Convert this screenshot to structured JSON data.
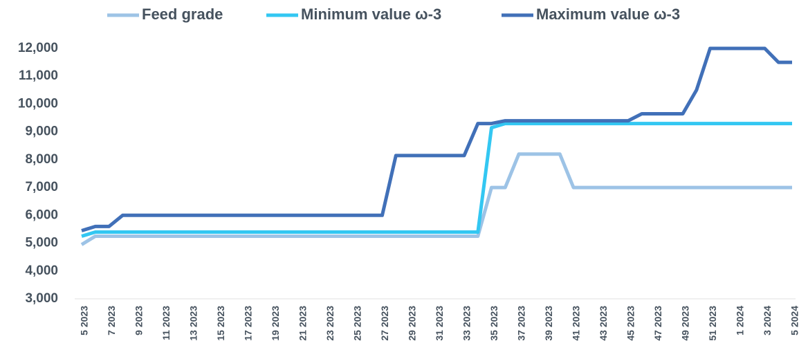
{
  "chart_data": {
    "type": "line",
    "categories": [
      "5 2023",
      null,
      "7 2023",
      null,
      "9 2023",
      null,
      "11 2023",
      null,
      "13 2023",
      null,
      "15 2023",
      null,
      "17 2023",
      null,
      "19 2023",
      null,
      "21 2023",
      null,
      "23 2023",
      null,
      "25 2023",
      null,
      "27 2023",
      null,
      "29 2023",
      null,
      "31 2023",
      null,
      "33 2023",
      null,
      "35 2023",
      null,
      "37 2023",
      null,
      "39 2023",
      null,
      "41 2023",
      null,
      "43 2023",
      null,
      "45 2023",
      null,
      "47 2023",
      null,
      "49 2023",
      null,
      "51 2023",
      null,
      "1 2024",
      null,
      "3 2024",
      null,
      "5 2024"
    ],
    "series": [
      {
        "name": "Feed grade",
        "color": "#9dc3e6",
        "values": [
          4950,
          5250,
          5250,
          5250,
          5250,
          5250,
          5250,
          5250,
          5250,
          5250,
          5250,
          5250,
          5250,
          5250,
          5250,
          5250,
          5250,
          5250,
          5250,
          5250,
          5250,
          5250,
          5250,
          5250,
          5250,
          5250,
          5250,
          5250,
          5250,
          5250,
          7000,
          7000,
          8200,
          8200,
          8200,
          8200,
          7000,
          7000,
          7000,
          7000,
          7000,
          7000,
          7000,
          7000,
          7000,
          7000,
          7000,
          7000,
          7000,
          7000,
          7000,
          7000,
          7000
        ]
      },
      {
        "name": "Minimum value ω-3",
        "color": "#33c7f2",
        "values": [
          5250,
          5400,
          5400,
          5400,
          5400,
          5400,
          5400,
          5400,
          5400,
          5400,
          5400,
          5400,
          5400,
          5400,
          5400,
          5400,
          5400,
          5400,
          5400,
          5400,
          5400,
          5400,
          5400,
          5400,
          5400,
          5400,
          5400,
          5400,
          5400,
          5400,
          9150,
          9300,
          9300,
          9300,
          9300,
          9300,
          9300,
          9300,
          9300,
          9300,
          9300,
          9300,
          9300,
          9300,
          9300,
          9300,
          9300,
          9300,
          9300,
          9300,
          9300,
          9300,
          9300
        ]
      },
      {
        "name": "Maximum value ω-3",
        "color": "#4170b8",
        "values": [
          5450,
          5600,
          5600,
          6000,
          6000,
          6000,
          6000,
          6000,
          6000,
          6000,
          6000,
          6000,
          6000,
          6000,
          6000,
          6000,
          6000,
          6000,
          6000,
          6000,
          6000,
          6000,
          6000,
          8150,
          8150,
          8150,
          8150,
          8150,
          8150,
          9300,
          9300,
          9400,
          9400,
          9400,
          9400,
          9400,
          9400,
          9400,
          9400,
          9400,
          9400,
          9650,
          9650,
          9650,
          9650,
          10500,
          12000,
          12000,
          12000,
          12000,
          12000,
          11500,
          11500
        ]
      }
    ],
    "ylim": [
      3000,
      12000
    ],
    "yticks": [
      {
        "value": 3000,
        "label": "3,000"
      },
      {
        "value": 4000,
        "label": "4,000"
      },
      {
        "value": 5000,
        "label": "5,000"
      },
      {
        "value": 6000,
        "label": "6,000"
      },
      {
        "value": 7000,
        "label": "7,000"
      },
      {
        "value": 8000,
        "label": "8,000"
      },
      {
        "value": 9000,
        "label": "9,000"
      },
      {
        "value": 10000,
        "label": "10,000"
      },
      {
        "value": 11000,
        "label": "11,000"
      },
      {
        "value": 12000,
        "label": "12,000"
      }
    ],
    "grid": false,
    "legend": "top"
  }
}
